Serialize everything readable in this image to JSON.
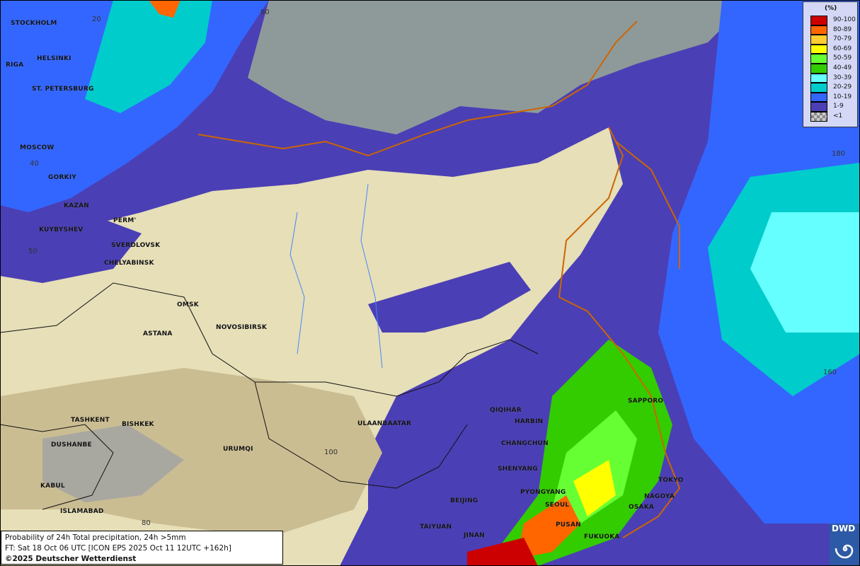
{
  "legend": {
    "unit": "(%)",
    "items": [
      {
        "label": "90-100",
        "color": "#cc0000"
      },
      {
        "label": "80-89",
        "color": "#ff6600"
      },
      {
        "label": "70-79",
        "color": "#ffcc33"
      },
      {
        "label": "60-69",
        "color": "#ffff00"
      },
      {
        "label": "50-59",
        "color": "#66ff33"
      },
      {
        "label": "40-49",
        "color": "#33cc00"
      },
      {
        "label": "30-39",
        "color": "#66ffff"
      },
      {
        "label": "20-29",
        "color": "#00cccc"
      },
      {
        "label": "10-19",
        "color": "#3366ff"
      },
      {
        "label": "1-9",
        "color": "#4b3fb5"
      },
      {
        "label": "<1",
        "color": "#aaaaaa"
      }
    ]
  },
  "caption": {
    "line1": "Probability of 24h Total precipitation, 24h >5mm",
    "line2": "FT: Sat 18 Oct 06 UTC [ICON EPS 2025 Oct 11 12UTC +162h]",
    "line3": "©2025 Deutscher Wetterdienst"
  },
  "logo": {
    "text": "DWD"
  },
  "cities": [
    "STOCKHOLM",
    "HELSINKI",
    "RIGA",
    "ST. PETERSBURG",
    "MOSCOW",
    "GORKIY",
    "KAZAN",
    "PERM'",
    "KUYBYSHEV",
    "SVERDLOVSK",
    "CHELYABINSK",
    "OMSK",
    "NOVOSIBIRSK",
    "ASTANA",
    "TASHKENT",
    "BISHKEK",
    "DUSHANBE",
    "URUMQI",
    "KABUL",
    "ISLAMABAD",
    "ULAANBAATAR",
    "QIQIHAR",
    "HARBIN",
    "CHANGCHUN",
    "SHENYANG",
    "PYONGYANG",
    "BEIJING",
    "SEOUL",
    "TAIYUAN",
    "PUSAN",
    "JINAN",
    "FUKUOKA",
    "SAPPORO",
    "TOKYO",
    "NAGOYA",
    "OSAKA"
  ],
  "grid_labels": [
    "20",
    "80",
    "40",
    "50",
    "100",
    "80",
    "180",
    "160"
  ]
}
